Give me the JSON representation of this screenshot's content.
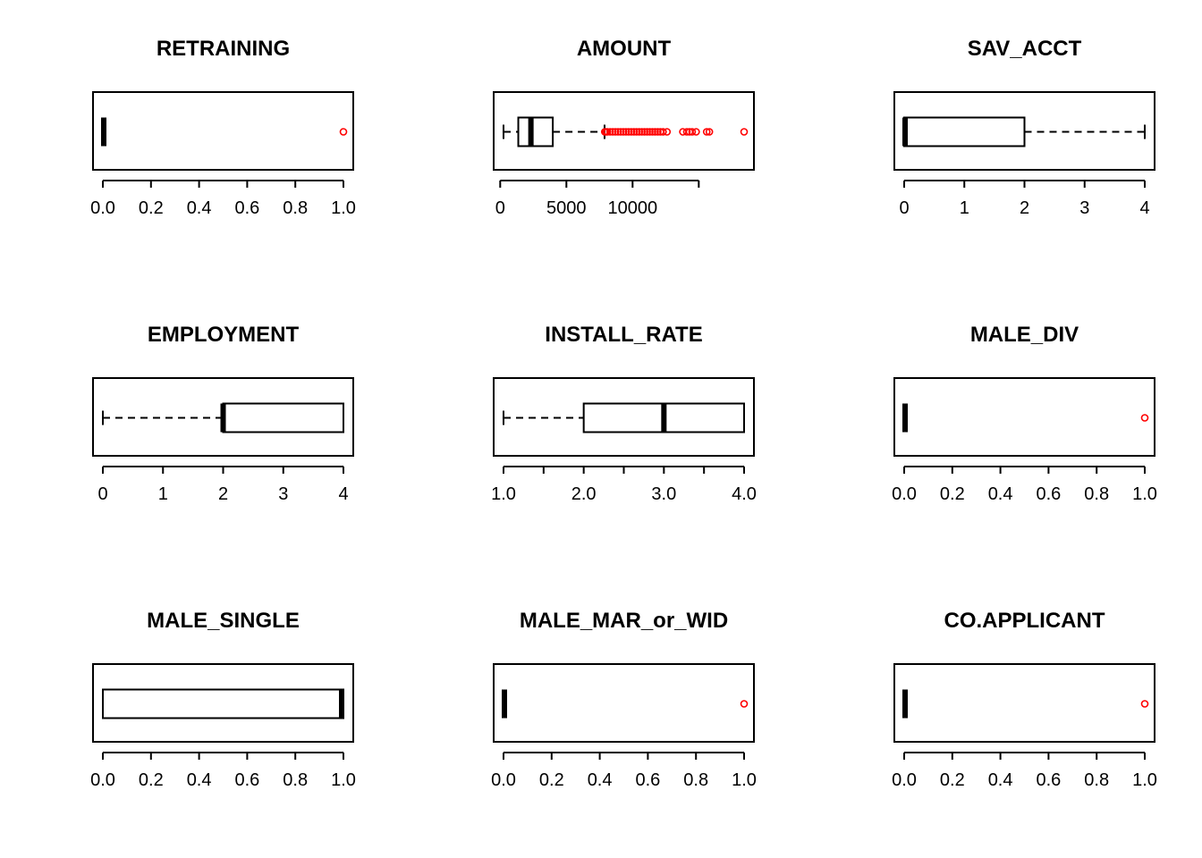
{
  "chart_data": [
    {
      "type": "boxplot",
      "orientation": "horizontal",
      "title": "RETRAINING",
      "xlim": [
        0,
        1
      ],
      "ticks": [
        0,
        0.2,
        0.4,
        0.6,
        0.8,
        1.0
      ],
      "tick_labels": [
        "0.0",
        "0.2",
        "0.4",
        "0.6",
        "0.8",
        "1.0"
      ],
      "stats": {
        "whisker_low": 0,
        "q1": 0,
        "median": 0,
        "q3": 0,
        "whisker_high": 0
      },
      "outliers": [
        1
      ],
      "outlier_color": "#ff0000"
    },
    {
      "type": "boxplot",
      "orientation": "horizontal",
      "title": "AMOUNT",
      "xlim": [
        250,
        18424
      ],
      "ticks": [
        0,
        5000,
        10000
      ],
      "tick_labels": [
        "0",
        "5000",
        "10000"
      ],
      "extra_ticks": [
        15000
      ],
      "stats": {
        "whisker_low": 250,
        "q1": 1366,
        "median": 2320,
        "q3": 3972,
        "whisker_high": 7882
      },
      "outliers": [
        7900,
        8000,
        8100,
        8300,
        8500,
        8700,
        8900,
        9100,
        9300,
        9500,
        9700,
        9900,
        10100,
        10300,
        10500,
        10700,
        10900,
        11100,
        11300,
        11500,
        11700,
        11900,
        12100,
        12300,
        12600,
        13800,
        14100,
        14300,
        14500,
        14800,
        15600,
        15800,
        18424
      ],
      "outlier_color": "#ff0000"
    },
    {
      "type": "boxplot",
      "orientation": "horizontal",
      "title": "SAV_ACCT",
      "xlim": [
        0,
        4
      ],
      "ticks": [
        0,
        1,
        2,
        3,
        4
      ],
      "tick_labels": [
        "0",
        "1",
        "2",
        "3",
        "4"
      ],
      "stats": {
        "whisker_low": 0,
        "q1": 0,
        "median": 0,
        "q3": 2,
        "whisker_high": 4
      },
      "outliers": [],
      "outlier_color": "#ff0000"
    },
    {
      "type": "boxplot",
      "orientation": "horizontal",
      "title": "EMPLOYMENT",
      "xlim": [
        0,
        4
      ],
      "ticks": [
        0,
        1,
        2,
        3,
        4
      ],
      "tick_labels": [
        "0",
        "1",
        "2",
        "3",
        "4"
      ],
      "stats": {
        "whisker_low": 0,
        "q1": 2,
        "median": 2,
        "q3": 4,
        "whisker_high": 4
      },
      "outliers": [],
      "outlier_color": "#ff0000"
    },
    {
      "type": "boxplot",
      "orientation": "horizontal",
      "title": "INSTALL_RATE",
      "xlim": [
        1,
        4
      ],
      "ticks": [
        1,
        1.5,
        2,
        2.5,
        3,
        3.5,
        4
      ],
      "tick_labels": [
        "1.0",
        "",
        "2.0",
        "",
        "3.0",
        "",
        "4.0"
      ],
      "stats": {
        "whisker_low": 1,
        "q1": 2,
        "median": 3,
        "q3": 4,
        "whisker_high": 4
      },
      "outliers": [],
      "outlier_color": "#ff0000"
    },
    {
      "type": "boxplot",
      "orientation": "horizontal",
      "title": "MALE_DIV",
      "xlim": [
        0,
        1
      ],
      "ticks": [
        0,
        0.2,
        0.4,
        0.6,
        0.8,
        1.0
      ],
      "tick_labels": [
        "0.0",
        "0.2",
        "0.4",
        "0.6",
        "0.8",
        "1.0"
      ],
      "stats": {
        "whisker_low": 0,
        "q1": 0,
        "median": 0,
        "q3": 0,
        "whisker_high": 0
      },
      "outliers": [
        1
      ],
      "outlier_color": "#ff0000"
    },
    {
      "type": "boxplot",
      "orientation": "horizontal",
      "title": "MALE_SINGLE",
      "xlim": [
        0,
        1
      ],
      "ticks": [
        0,
        0.2,
        0.4,
        0.6,
        0.8,
        1.0
      ],
      "tick_labels": [
        "0.0",
        "0.2",
        "0.4",
        "0.6",
        "0.8",
        "1.0"
      ],
      "stats": {
        "whisker_low": 0,
        "q1": 0,
        "median": 1,
        "q3": 1,
        "whisker_high": 1
      },
      "outliers": [],
      "outlier_color": "#ff0000"
    },
    {
      "type": "boxplot",
      "orientation": "horizontal",
      "title": "MALE_MAR_or_WID",
      "xlim": [
        0,
        1
      ],
      "ticks": [
        0,
        0.2,
        0.4,
        0.6,
        0.8,
        1.0
      ],
      "tick_labels": [
        "0.0",
        "0.2",
        "0.4",
        "0.6",
        "0.8",
        "1.0"
      ],
      "stats": {
        "whisker_low": 0,
        "q1": 0,
        "median": 0,
        "q3": 0,
        "whisker_high": 0
      },
      "outliers": [
        1
      ],
      "outlier_color": "#ff0000"
    },
    {
      "type": "boxplot",
      "orientation": "horizontal",
      "title": "CO.APPLICANT",
      "xlim": [
        0,
        1
      ],
      "ticks": [
        0,
        0.2,
        0.4,
        0.6,
        0.8,
        1.0
      ],
      "tick_labels": [
        "0.0",
        "0.2",
        "0.4",
        "0.6",
        "0.8",
        "1.0"
      ],
      "stats": {
        "whisker_low": 0,
        "q1": 0,
        "median": 0,
        "q3": 0,
        "whisker_high": 0
      },
      "outliers": [
        1
      ],
      "outlier_color": "#ff0000"
    }
  ]
}
